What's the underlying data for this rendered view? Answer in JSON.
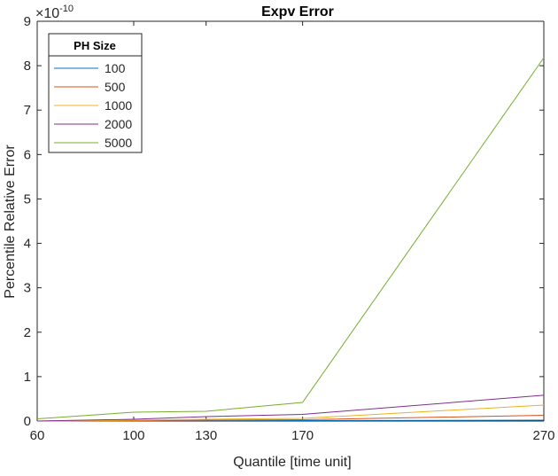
{
  "chart_data": {
    "type": "line",
    "title": "Expv Error",
    "xlabel": "Quantile [time unit]",
    "ylabel": "Percentile Relative Error",
    "y_exponent_label": "×10",
    "y_exponent_power": "-10",
    "x": [
      60,
      100,
      130,
      170,
      270
    ],
    "x_tick_labels": [
      "60",
      "100",
      "130",
      "170",
      "270"
    ],
    "y_ticks": [
      0,
      1,
      2,
      3,
      4,
      5,
      6,
      7,
      8,
      9
    ],
    "ylim": [
      0,
      9
    ],
    "legend": {
      "title": "PH Size",
      "placement": "top-left"
    },
    "series": [
      {
        "name": "100",
        "color": "#0072BD",
        "values": [
          0.0,
          0.005,
          0.01,
          0.01,
          0.02
        ]
      },
      {
        "name": "500",
        "color": "#D95319",
        "values": [
          0.0,
          0.01,
          0.02,
          0.03,
          0.13
        ]
      },
      {
        "name": "1000",
        "color": "#EDB120",
        "values": [
          0.0,
          0.02,
          0.04,
          0.06,
          0.36
        ]
      },
      {
        "name": "2000",
        "color": "#7E2F8E",
        "values": [
          0.0,
          0.04,
          0.1,
          0.15,
          0.58
        ]
      },
      {
        "name": "5000",
        "color": "#77AC30",
        "values": [
          0.05,
          0.2,
          0.22,
          0.42,
          8.18
        ]
      }
    ]
  }
}
